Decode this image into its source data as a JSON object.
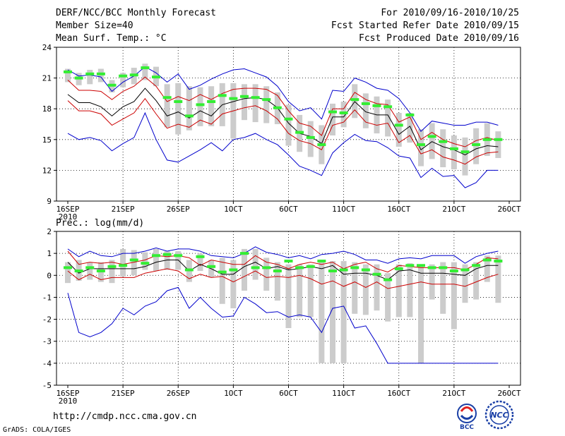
{
  "header": {
    "title": "DERF/NCC/BCC Monthly Forecast",
    "member_size": "Member Size=40",
    "variable": "Mean Surf. Temp.: °C",
    "period": "For 2010/09/16-2010/10/25",
    "started": "Fcst Started Refer Date 2010/09/15",
    "produced": "Fcst Produced Date 2010/09/16"
  },
  "footer": {
    "url": "http://cmdp.ncc.cma.gov.cn",
    "credit": "GrADS: COLA/IGES",
    "logo_bcc": "BCC",
    "logo_ncc": "NCC"
  },
  "colors": {
    "box": "#cccccc",
    "median": "#33ee33",
    "mean": "#000000",
    "spread": "#cc0000",
    "envelope": "#0000cc",
    "grid": "#000000"
  },
  "chart_data": [
    {
      "type": "line",
      "title": "Mean Surf. Temp.: °C",
      "ylabel": "°C",
      "ylim": [
        9,
        24
      ],
      "yticks": [
        9,
        12,
        15,
        18,
        21,
        24
      ],
      "xlim": [
        0,
        40
      ],
      "xticks": [
        {
          "day": 0,
          "label": "16SEP",
          "sub": "2010"
        },
        {
          "day": 5,
          "label": "21SEP"
        },
        {
          "day": 10,
          "label": "26SEP"
        },
        {
          "day": 15,
          "label": "1OCT"
        },
        {
          "day": 20,
          "label": "6OCT"
        },
        {
          "day": 25,
          "label": "11OCT"
        },
        {
          "day": 30,
          "label": "16OCT"
        },
        {
          "day": 35,
          "label": "21OCT"
        },
        {
          "day": 40,
          "label": "26OCT"
        }
      ],
      "grid": true,
      "days": [
        0,
        1,
        2,
        3,
        4,
        5,
        6,
        7,
        8,
        9,
        10,
        11,
        12,
        13,
        14,
        15,
        16,
        17,
        18,
        19,
        20,
        21,
        22,
        23,
        24,
        25,
        26,
        27,
        28,
        29,
        30,
        31,
        32,
        33,
        34,
        35,
        36,
        37,
        38,
        39
      ],
      "series": [
        {
          "name": "max",
          "values": [
            21.8,
            21.2,
            21.3,
            21.1,
            19.7,
            20.6,
            21.2,
            22.1,
            21.5,
            20.6,
            21.4,
            19.9,
            20.3,
            20.9,
            21.4,
            21.8,
            21.9,
            21.5,
            21.1,
            20.2,
            18.7,
            17.8,
            18.1,
            17.0,
            19.8,
            19.7,
            21.0,
            20.6,
            20.0,
            19.8,
            19.0,
            17.6,
            15.8,
            16.8,
            16.6,
            16.4,
            16.4,
            16.7,
            16.7,
            16.4
          ]
        },
        {
          "name": "spread_upper",
          "values": [
            20.8,
            19.8,
            19.8,
            19.7,
            18.9,
            19.7,
            20.2,
            21.1,
            20.2,
            18.7,
            19.2,
            18.8,
            19.4,
            18.9,
            19.5,
            19.9,
            20.0,
            20.0,
            19.9,
            19.3,
            17.8,
            16.6,
            16.3,
            15.4,
            18.0,
            18.0,
            19.6,
            18.9,
            18.5,
            18.4,
            16.7,
            17.2,
            15.0,
            15.7,
            15.0,
            14.6,
            14.3,
            14.9,
            15.2,
            14.9
          ]
        },
        {
          "name": "mean",
          "values": [
            19.4,
            18.6,
            18.6,
            18.2,
            17.3,
            18.2,
            18.7,
            20.0,
            18.8,
            17.3,
            17.7,
            17.1,
            17.8,
            17.3,
            18.4,
            18.7,
            19.0,
            19.1,
            18.9,
            18.1,
            16.6,
            15.6,
            15.3,
            14.6,
            17.2,
            17.2,
            18.7,
            17.7,
            17.4,
            17.4,
            15.5,
            16.3,
            14.0,
            14.8,
            14.3,
            14.0,
            13.5,
            14.1,
            14.4,
            14.3
          ]
        },
        {
          "name": "spread_lower",
          "values": [
            18.8,
            17.8,
            17.8,
            17.5,
            16.4,
            17.0,
            17.6,
            19.0,
            17.5,
            16.1,
            16.5,
            16.2,
            16.9,
            16.5,
            17.5,
            17.8,
            18.1,
            18.3,
            17.8,
            17.0,
            15.6,
            14.9,
            14.6,
            14.0,
            16.4,
            16.7,
            17.9,
            16.7,
            16.4,
            16.6,
            14.7,
            15.4,
            13.6,
            14.0,
            13.3,
            13.0,
            12.6,
            13.3,
            13.7,
            13.8
          ]
        },
        {
          "name": "min",
          "values": [
            15.6,
            15.0,
            15.2,
            14.9,
            13.9,
            14.6,
            15.2,
            17.6,
            15.0,
            13.0,
            12.8,
            13.4,
            14.0,
            14.7,
            13.9,
            15.0,
            15.2,
            15.6,
            15.0,
            14.5,
            13.5,
            12.4,
            12.0,
            11.5,
            13.7,
            14.7,
            15.5,
            14.9,
            14.8,
            14.2,
            13.4,
            13.2,
            11.3,
            12.2,
            11.4,
            11.5,
            10.3,
            10.8,
            12.0,
            12.0
          ]
        },
        {
          "name": "median",
          "values": [
            21.6,
            21.0,
            21.4,
            21.4,
            20.3,
            21.2,
            21.3,
            22.0,
            21.1,
            19.1,
            18.7,
            17.3,
            18.4,
            18.7,
            19.3,
            19.0,
            19.2,
            19.1,
            18.9,
            18.1,
            17.0,
            15.7,
            15.2,
            14.5,
            17.7,
            17.6,
            18.9,
            18.5,
            18.3,
            18.2,
            16.4,
            17.4,
            14.5,
            15.3,
            14.8,
            14.1,
            13.8,
            14.5,
            15.0,
            15.0
          ]
        },
        {
          "name": "box_top",
          "values": [
            21.9,
            21.5,
            21.8,
            21.9,
            20.8,
            21.5,
            22.0,
            22.4,
            22.1,
            20.4,
            20.5,
            20.2,
            20.1,
            20.2,
            20.5,
            20.5,
            20.4,
            20.4,
            20.2,
            19.6,
            18.4,
            17.4,
            16.8,
            16.4,
            18.5,
            18.7,
            20.4,
            19.5,
            19.2,
            18.9,
            17.6,
            17.6,
            16.0,
            16.6,
            16.0,
            15.4,
            15.2,
            16.1,
            16.6,
            15.8
          ]
        },
        {
          "name": "box_bottom",
          "values": [
            20.6,
            20.3,
            20.4,
            20.6,
            19.6,
            20.1,
            20.4,
            20.8,
            20.2,
            16.2,
            15.5,
            15.9,
            16.3,
            16.3,
            16.3,
            15.1,
            16.9,
            16.7,
            16.6,
            16.5,
            14.4,
            13.8,
            13.3,
            12.6,
            15.4,
            16.2,
            17.1,
            16.1,
            15.6,
            15.3,
            14.3,
            14.7,
            12.4,
            13.1,
            12.3,
            12.1,
            11.5,
            12.6,
            13.4,
            13.2
          ]
        }
      ]
    },
    {
      "type": "line",
      "title": "Prec.: log(mm/d)",
      "ylabel": "log(mm/d)",
      "ylim": [
        -5,
        2
      ],
      "yticks": [
        -5,
        -4,
        -3,
        -2,
        -1,
        0,
        1,
        2
      ],
      "xlim": [
        0,
        40
      ],
      "xticks": [
        {
          "day": 0,
          "label": "16SEP",
          "sub": "2010"
        },
        {
          "day": 5,
          "label": "21SEP"
        },
        {
          "day": 10,
          "label": "26SEP"
        },
        {
          "day": 15,
          "label": "1OCT"
        },
        {
          "day": 20,
          "label": "6OCT"
        },
        {
          "day": 25,
          "label": "11OCT"
        },
        {
          "day": 30,
          "label": "16OCT"
        },
        {
          "day": 35,
          "label": "21OCT"
        },
        {
          "day": 40,
          "label": "26OCT"
        }
      ],
      "grid": true,
      "days": [
        0,
        1,
        2,
        3,
        4,
        5,
        6,
        7,
        8,
        9,
        10,
        11,
        12,
        13,
        14,
        15,
        16,
        17,
        18,
        19,
        20,
        21,
        22,
        23,
        24,
        25,
        26,
        27,
        28,
        29,
        30,
        31,
        32,
        33,
        34,
        35,
        36,
        37,
        38,
        39
      ],
      "series": [
        {
          "name": "max",
          "values": [
            1.2,
            0.85,
            1.1,
            0.9,
            0.85,
            1.0,
            1.0,
            1.1,
            1.25,
            1.1,
            1.2,
            1.2,
            1.1,
            0.9,
            0.85,
            0.8,
            1.0,
            1.3,
            1.05,
            0.95,
            0.8,
            0.9,
            0.75,
            0.95,
            1.0,
            1.1,
            0.95,
            0.7,
            0.7,
            0.55,
            0.75,
            0.8,
            0.75,
            0.9,
            0.9,
            0.9,
            0.55,
            0.85,
            1.0,
            1.1
          ]
        },
        {
          "name": "spread_upper",
          "values": [
            1.1,
            0.5,
            0.6,
            0.55,
            0.6,
            0.5,
            0.6,
            0.7,
            0.9,
            0.85,
            0.9,
            0.8,
            0.45,
            0.7,
            0.6,
            0.5,
            0.5,
            0.9,
            0.6,
            0.5,
            0.3,
            0.5,
            0.6,
            0.5,
            0.6,
            0.3,
            0.5,
            0.6,
            0.3,
            0.15,
            0.45,
            0.4,
            0.35,
            0.35,
            0.35,
            0.35,
            0.25,
            0.5,
            0.8,
            0.75
          ]
        },
        {
          "name": "mean",
          "values": [
            0.6,
            0.1,
            0.3,
            0.3,
            0.3,
            0.3,
            0.3,
            0.4,
            0.6,
            0.7,
            0.7,
            0.2,
            0.5,
            0.3,
            0.05,
            0.05,
            0.4,
            0.6,
            0.3,
            0.4,
            0.25,
            0.3,
            0.4,
            0.3,
            0.45,
            0.05,
            0.1,
            0.1,
            0.0,
            -0.2,
            0.2,
            0.25,
            0.1,
            0.1,
            0.1,
            0.05,
            0.0,
            0.3,
            0.45,
            0.45
          ]
        },
        {
          "name": "spread_lower",
          "values": [
            0.2,
            -0.2,
            0.05,
            -0.2,
            -0.1,
            -0.1,
            -0.1,
            0.1,
            0.2,
            0.3,
            0.2,
            -0.15,
            0.05,
            -0.1,
            -0.05,
            -0.3,
            -0.05,
            0.2,
            -0.1,
            -0.05,
            -0.1,
            0.0,
            -0.15,
            -0.4,
            -0.25,
            -0.5,
            -0.3,
            -0.55,
            -0.3,
            -0.6,
            -0.5,
            -0.4,
            -0.3,
            -0.4,
            -0.4,
            -0.4,
            -0.5,
            -0.3,
            -0.1,
            0.05
          ]
        },
        {
          "name": "min",
          "values": [
            -0.8,
            -2.6,
            -2.8,
            -2.6,
            -2.2,
            -1.5,
            -1.8,
            -1.4,
            -1.2,
            -0.7,
            -0.55,
            -1.5,
            -1.0,
            -1.5,
            -1.9,
            -1.85,
            -1.0,
            -1.3,
            -1.7,
            -1.65,
            -1.9,
            -1.8,
            -1.9,
            -2.6,
            -1.5,
            -1.4,
            -2.4,
            -2.3,
            -3.1,
            -4.0,
            -4.0,
            -4.0,
            -4.0,
            -4.0,
            -4.0,
            -4.0,
            -4.0,
            -4.0,
            -4.0,
            -4.0
          ]
        },
        {
          "name": "median",
          "values": [
            0.35,
            0.2,
            0.35,
            0.2,
            0.4,
            0.45,
            0.7,
            0.55,
            0.9,
            0.95,
            0.9,
            0.25,
            0.85,
            0.4,
            0.15,
            0.25,
            1.0,
            0.35,
            0.35,
            0.2,
            0.65,
            0.35,
            0.4,
            0.65,
            0.2,
            0.25,
            0.35,
            0.25,
            0.05,
            -0.2,
            0.3,
            0.45,
            0.45,
            0.35,
            0.35,
            0.2,
            0.25,
            0.45,
            0.7,
            0.65
          ]
        },
        {
          "name": "box_top",
          "values": [
            0.6,
            0.7,
            0.6,
            0.6,
            0.7,
            1.2,
            1.15,
            1.05,
            1.2,
            1.1,
            1.1,
            0.7,
            1.0,
            0.7,
            0.8,
            0.7,
            1.2,
            1.2,
            0.8,
            0.6,
            0.5,
            0.5,
            0.5,
            0.6,
            0.65,
            0.65,
            0.6,
            0.5,
            0.5,
            0.1,
            0.5,
            0.55,
            0.5,
            0.5,
            0.6,
            0.6,
            0.5,
            0.6,
            0.9,
            0.9
          ]
        },
        {
          "name": "box_bottom",
          "values": [
            -0.35,
            -0.25,
            -0.2,
            -0.3,
            -0.35,
            -0.05,
            0.0,
            0.25,
            0.2,
            0.25,
            0.25,
            -0.3,
            0.2,
            -0.1,
            -1.3,
            -1.5,
            -0.7,
            -0.2,
            -0.7,
            -1.15,
            -2.4,
            -1.9,
            -1.9,
            -4.0,
            -4.0,
            -4.0,
            -1.75,
            -1.8,
            -1.6,
            -2.1,
            -1.9,
            -1.9,
            -4.0,
            -1.1,
            -1.75,
            -2.45,
            -1.25,
            -1.1,
            -0.3,
            -1.25
          ]
        }
      ]
    }
  ]
}
